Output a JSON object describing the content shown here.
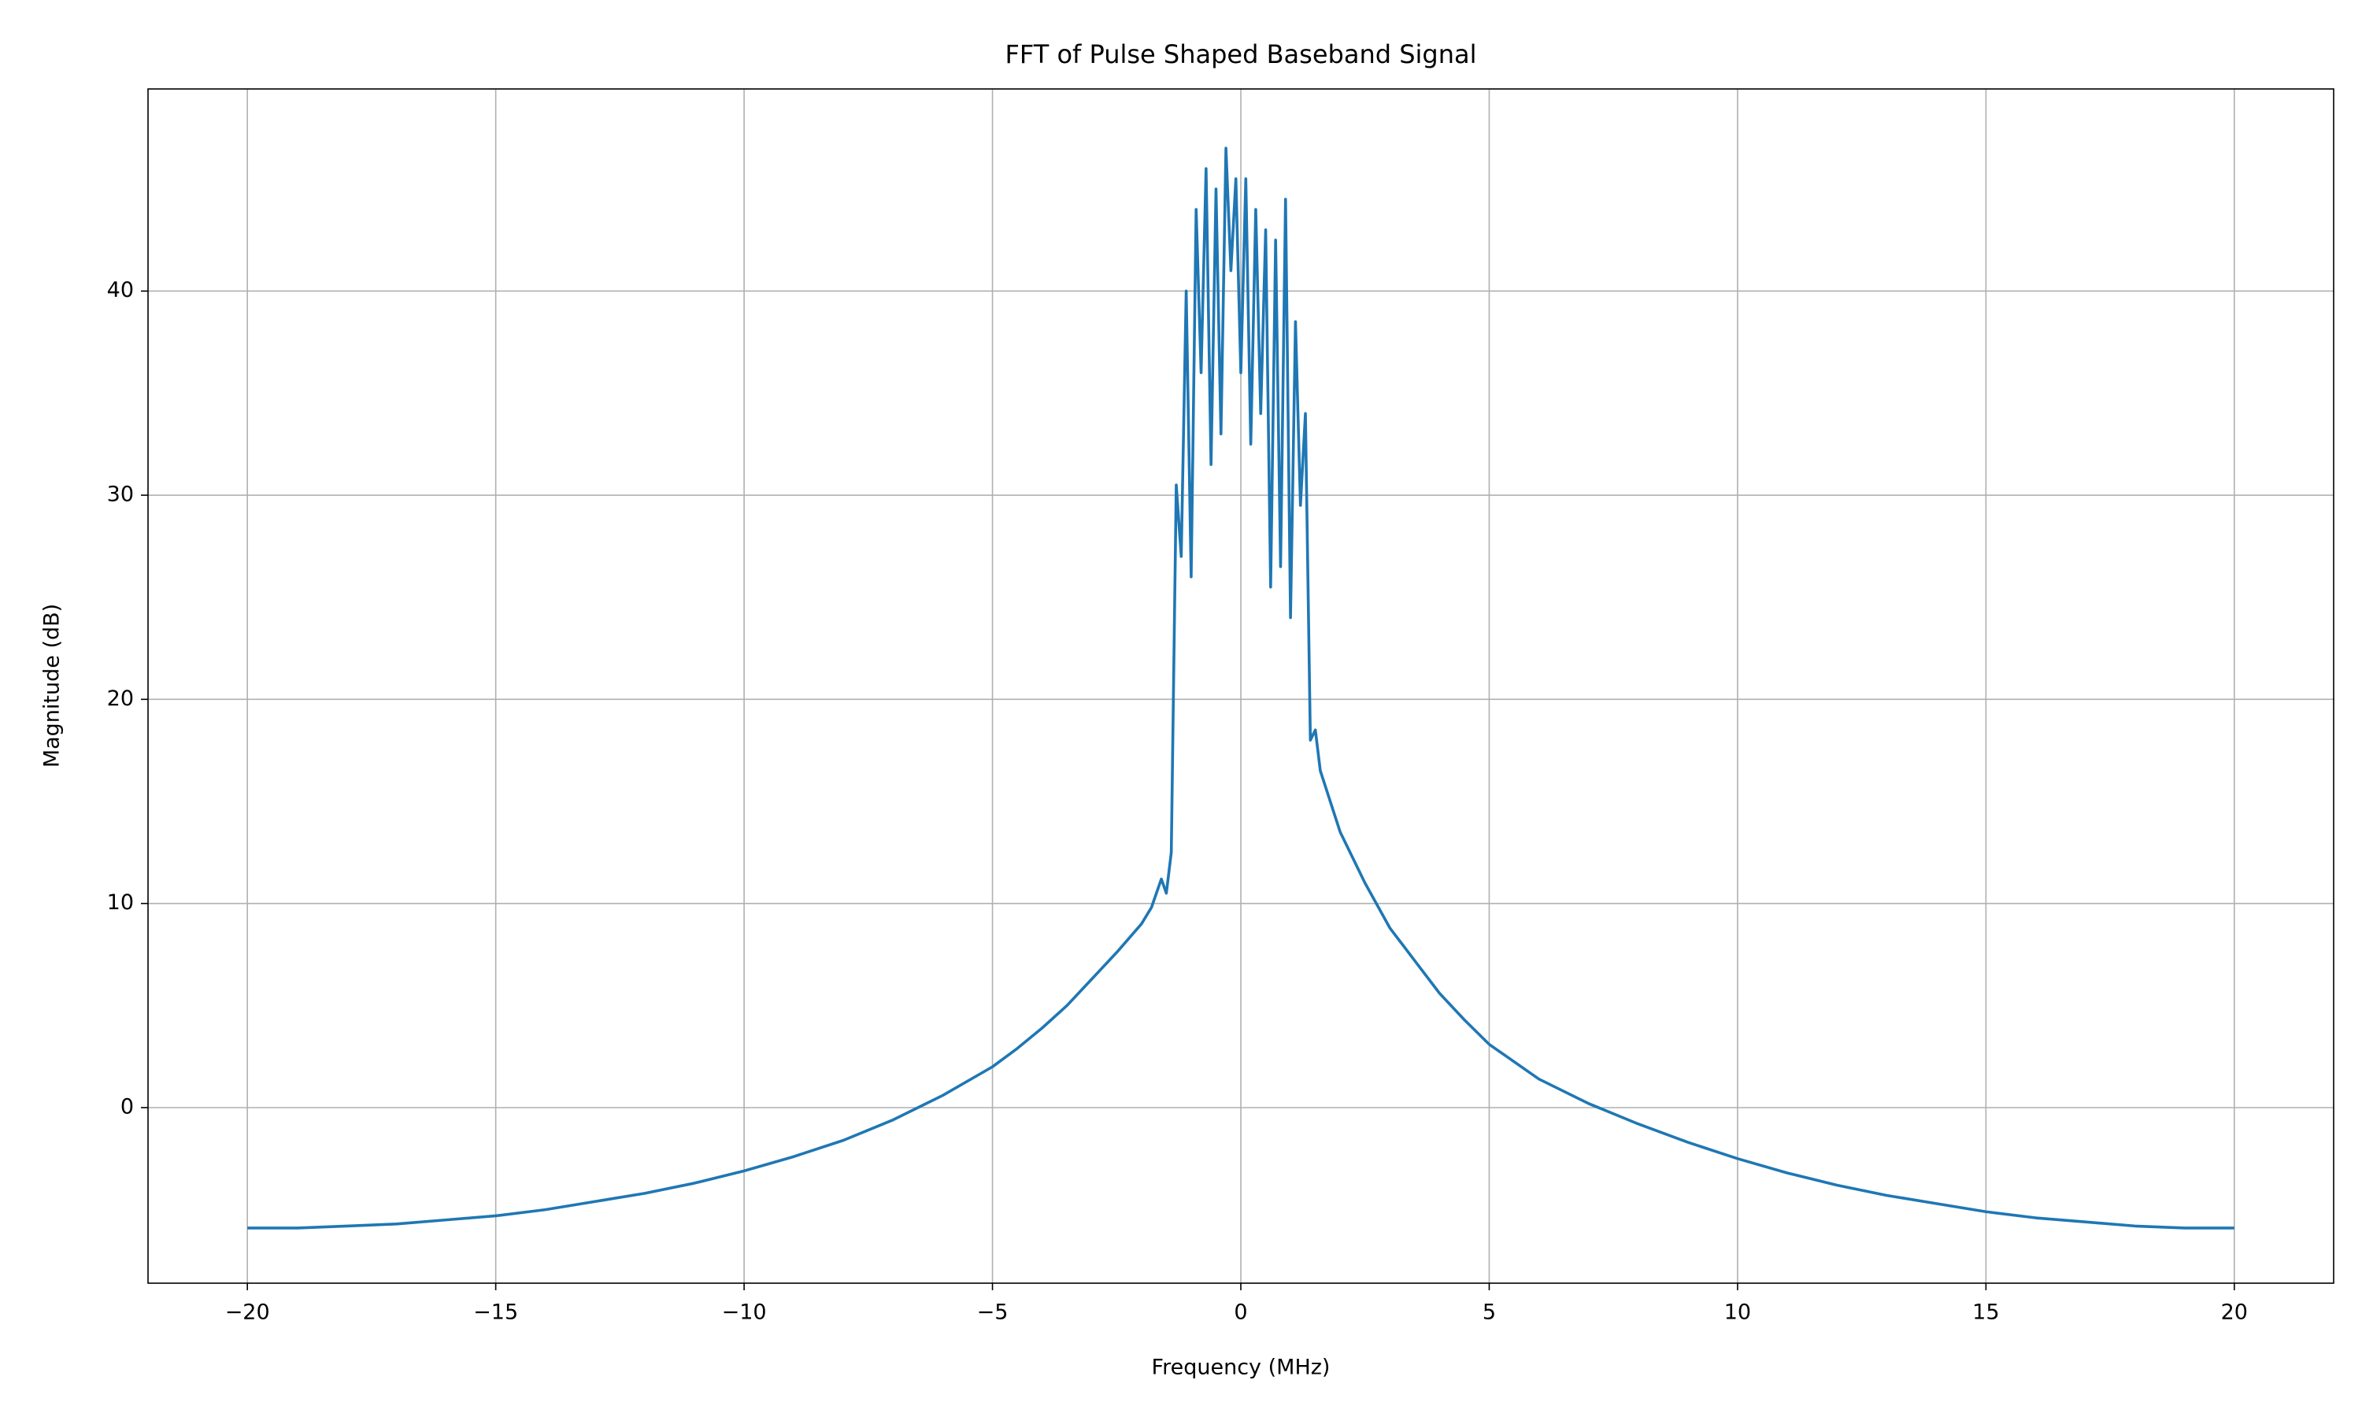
{
  "chart_data": {
    "type": "line",
    "title": "FFT of Pulse Shaped Baseband Signal",
    "x_label": "Frequency (MHz)",
    "y_label": "Magnitude (dB)",
    "x": [
      -20,
      -19,
      -18,
      -17,
      -16,
      -15,
      -14,
      -13,
      -12,
      -11,
      -10,
      -9,
      -8,
      -7,
      -6,
      -5,
      -4.5,
      -4,
      -3.5,
      -3,
      -2.5,
      -2,
      -1.8,
      -1.6,
      -1.5,
      -1.4,
      -1.3,
      -1.2,
      -1.1,
      -1.0,
      -0.9,
      -0.8,
      -0.7,
      -0.6,
      -0.5,
      -0.4,
      -0.3,
      -0.2,
      -0.1,
      0,
      0.1,
      0.2,
      0.3,
      0.4,
      0.5,
      0.6,
      0.7,
      0.8,
      0.9,
      1.0,
      1.1,
      1.2,
      1.3,
      1.4,
      1.5,
      1.6,
      1.8,
      2,
      2.5,
      3,
      3.5,
      4,
      4.5,
      5,
      6,
      7,
      8,
      9,
      10,
      11,
      12,
      13,
      14,
      15,
      16,
      17,
      18,
      19,
      20
    ],
    "series": [
      {
        "name": "FFT",
        "color": "#1f77b4",
        "values": [
          -5.9,
          -5.9,
          -5.8,
          -5.7,
          -5.5,
          -5.3,
          -5.0,
          -4.6,
          -4.2,
          -3.7,
          -3.1,
          -2.4,
          -1.6,
          -0.6,
          0.6,
          2.0,
          2.9,
          3.9,
          5.0,
          6.3,
          7.6,
          9.0,
          9.8,
          11.2,
          10.5,
          12.5,
          30.5,
          27,
          40,
          26,
          44,
          36,
          46,
          31.5,
          45,
          33,
          47,
          41,
          45.5,
          36,
          45.5,
          32.5,
          44,
          34,
          43,
          25.5,
          42.5,
          26.5,
          44.5,
          24,
          38.5,
          29.5,
          34,
          18,
          18.5,
          16.5,
          15,
          13.5,
          11.0,
          8.8,
          7.2,
          5.6,
          4.3,
          3.1,
          1.4,
          0.2,
          -0.8,
          -1.7,
          -2.5,
          -3.2,
          -3.8,
          -4.3,
          -4.7,
          -5.1,
          -5.4,
          -5.6,
          -5.8,
          -5.9,
          -5.9
        ]
      }
    ],
    "xlim": [
      -22,
      22
    ],
    "xticks": [
      {
        "value": -20,
        "label": "−20"
      },
      {
        "value": -15,
        "label": "−15"
      },
      {
        "value": -10,
        "label": "−10"
      },
      {
        "value": -5,
        "label": "−5"
      },
      0,
      5,
      10,
      15,
      20
    ],
    "ylim": [
      -8.6,
      49.9
    ],
    "yticks": [
      0,
      10,
      20,
      30,
      40
    ],
    "grid": true
  }
}
